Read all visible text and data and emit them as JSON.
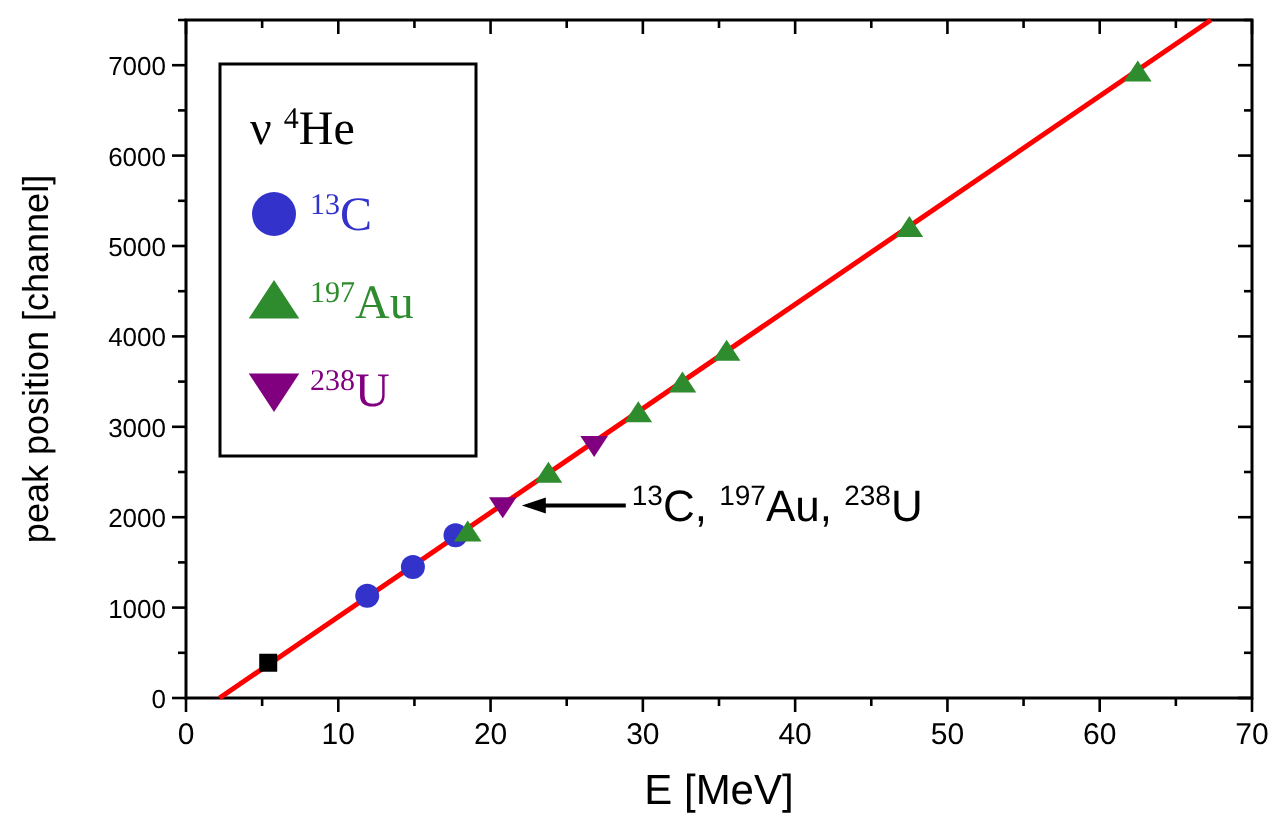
{
  "chart_data": {
    "type": "scatter",
    "xlabel": "E [MeV]",
    "ylabel": "peak position [channel]",
    "legend_title": "ν $^{4}$He",
    "legend": "top left",
    "grid": false,
    "xlim": [
      0,
      70
    ],
    "ylim": [
      0,
      7500
    ],
    "xticks": [
      0,
      {
        "value": 5,
        "label": null
      },
      10,
      {
        "value": 15,
        "label": null
      },
      20,
      {
        "value": 25,
        "label": null
      },
      30,
      {
        "value": 35,
        "label": null
      },
      40,
      {
        "value": 45,
        "label": null
      },
      50,
      {
        "value": 55,
        "label": null
      },
      60,
      {
        "value": 65,
        "label": null
      },
      70
    ],
    "yticks": [
      0,
      {
        "value": 500,
        "label": null
      },
      1000,
      {
        "value": 1500,
        "label": null
      },
      2000,
      {
        "value": 2500,
        "label": null
      },
      3000,
      {
        "value": 3500,
        "label": null
      },
      4000,
      {
        "value": 4500,
        "label": null
      },
      5000,
      {
        "value": 5500,
        "label": null
      },
      6000,
      {
        "value": 6500,
        "label": null
      },
      7000,
      {
        "value": 7500,
        "label": null
      }
    ],
    "series": [
      {
        "type": "line",
        "color": "#ff0000",
        "marker": "none",
        "line_style": "solid",
        "x": [
          2.2,
          67.3
        ],
        "values": [
          0,
          7500
        ]
      },
      {
        "color": "#000000",
        "marker": "square",
        "x": [
          5.4
        ],
        "values": [
          390
        ]
      },
      {
        "name": "$^{13}$C",
        "color": "#3333cc",
        "marker": "circle",
        "x": [
          11.9,
          14.9,
          17.7
        ],
        "values": [
          1130,
          1450,
          1800
        ]
      },
      {
        "name": "$^{197}$Au",
        "color": "#2e8b2e",
        "marker": "triangle",
        "x": [
          18.5,
          23.8,
          29.7,
          32.6,
          35.5,
          47.5,
          62.5
        ],
        "values": [
          1830,
          2480,
          3150,
          3480,
          3830,
          5200,
          6920
        ]
      },
      {
        "name": "$^{238}$U",
        "color": "#800080",
        "marker": "triangle-down",
        "x": [
          20.8,
          26.8
        ],
        "values": [
          2120,
          2800
        ]
      }
    ],
    "annotations": [
      {
        "text": "$^{13}$C, $^{197}$Au, $^{238}$U",
        "x": 21,
        "y": 2130
      }
    ]
  }
}
